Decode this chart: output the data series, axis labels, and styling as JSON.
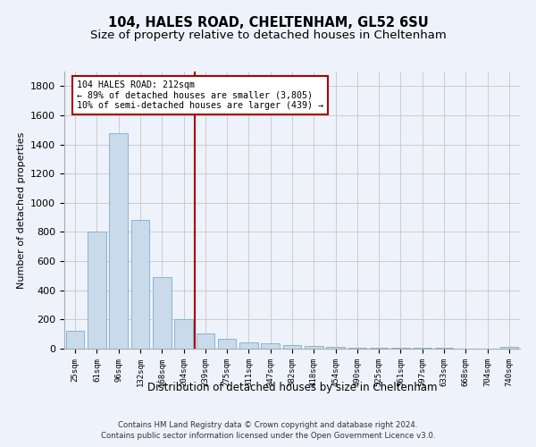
{
  "title": "104, HALES ROAD, CHELTENHAM, GL52 6SU",
  "subtitle": "Size of property relative to detached houses in Cheltenham",
  "xlabel": "Distribution of detached houses by size in Cheltenham",
  "ylabel": "Number of detached properties",
  "footer_line1": "Contains HM Land Registry data © Crown copyright and database right 2024.",
  "footer_line2": "Contains public sector information licensed under the Open Government Licence v3.0.",
  "categories": [
    "25sqm",
    "61sqm",
    "96sqm",
    "132sqm",
    "168sqm",
    "204sqm",
    "239sqm",
    "275sqm",
    "311sqm",
    "347sqm",
    "382sqm",
    "418sqm",
    "454sqm",
    "490sqm",
    "525sqm",
    "561sqm",
    "597sqm",
    "633sqm",
    "668sqm",
    "704sqm",
    "740sqm"
  ],
  "values": [
    125,
    800,
    1480,
    880,
    490,
    205,
    105,
    65,
    40,
    35,
    25,
    20,
    15,
    8,
    6,
    5,
    5,
    4,
    3,
    3,
    15
  ],
  "bar_color": "#c9daea",
  "bar_edgecolor": "#8ab4d0",
  "vline_x": 5.5,
  "vline_color": "#aa0000",
  "annotation_text": "104 HALES ROAD: 212sqm\n← 89% of detached houses are smaller (3,805)\n10% of semi-detached houses are larger (439) →",
  "annotation_box_facecolor": "#ffffff",
  "annotation_box_edgecolor": "#aa0000",
  "ylim": [
    0,
    1900
  ],
  "yticks": [
    0,
    200,
    400,
    600,
    800,
    1000,
    1200,
    1400,
    1600,
    1800
  ],
  "grid_color": "#cccccc",
  "background_color": "#eef2fa",
  "title_fontsize": 10.5,
  "subtitle_fontsize": 9.5
}
